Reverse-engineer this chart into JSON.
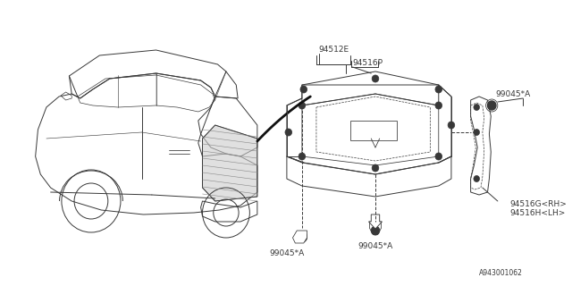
{
  "bg_color": "#ffffff",
  "line_color": "#383838",
  "text_color": "#383838",
  "diagram_id": "A943001062",
  "font_size": 6.5,
  "label_94512E": "94512E",
  "label_94516P": "94516P",
  "label_99045A": "99045*A",
  "label_94516G": "94516G<RH>",
  "label_94516H": "94516H<LH>",
  "car_color": "#383838",
  "hatch_color": "#aaaaaa"
}
